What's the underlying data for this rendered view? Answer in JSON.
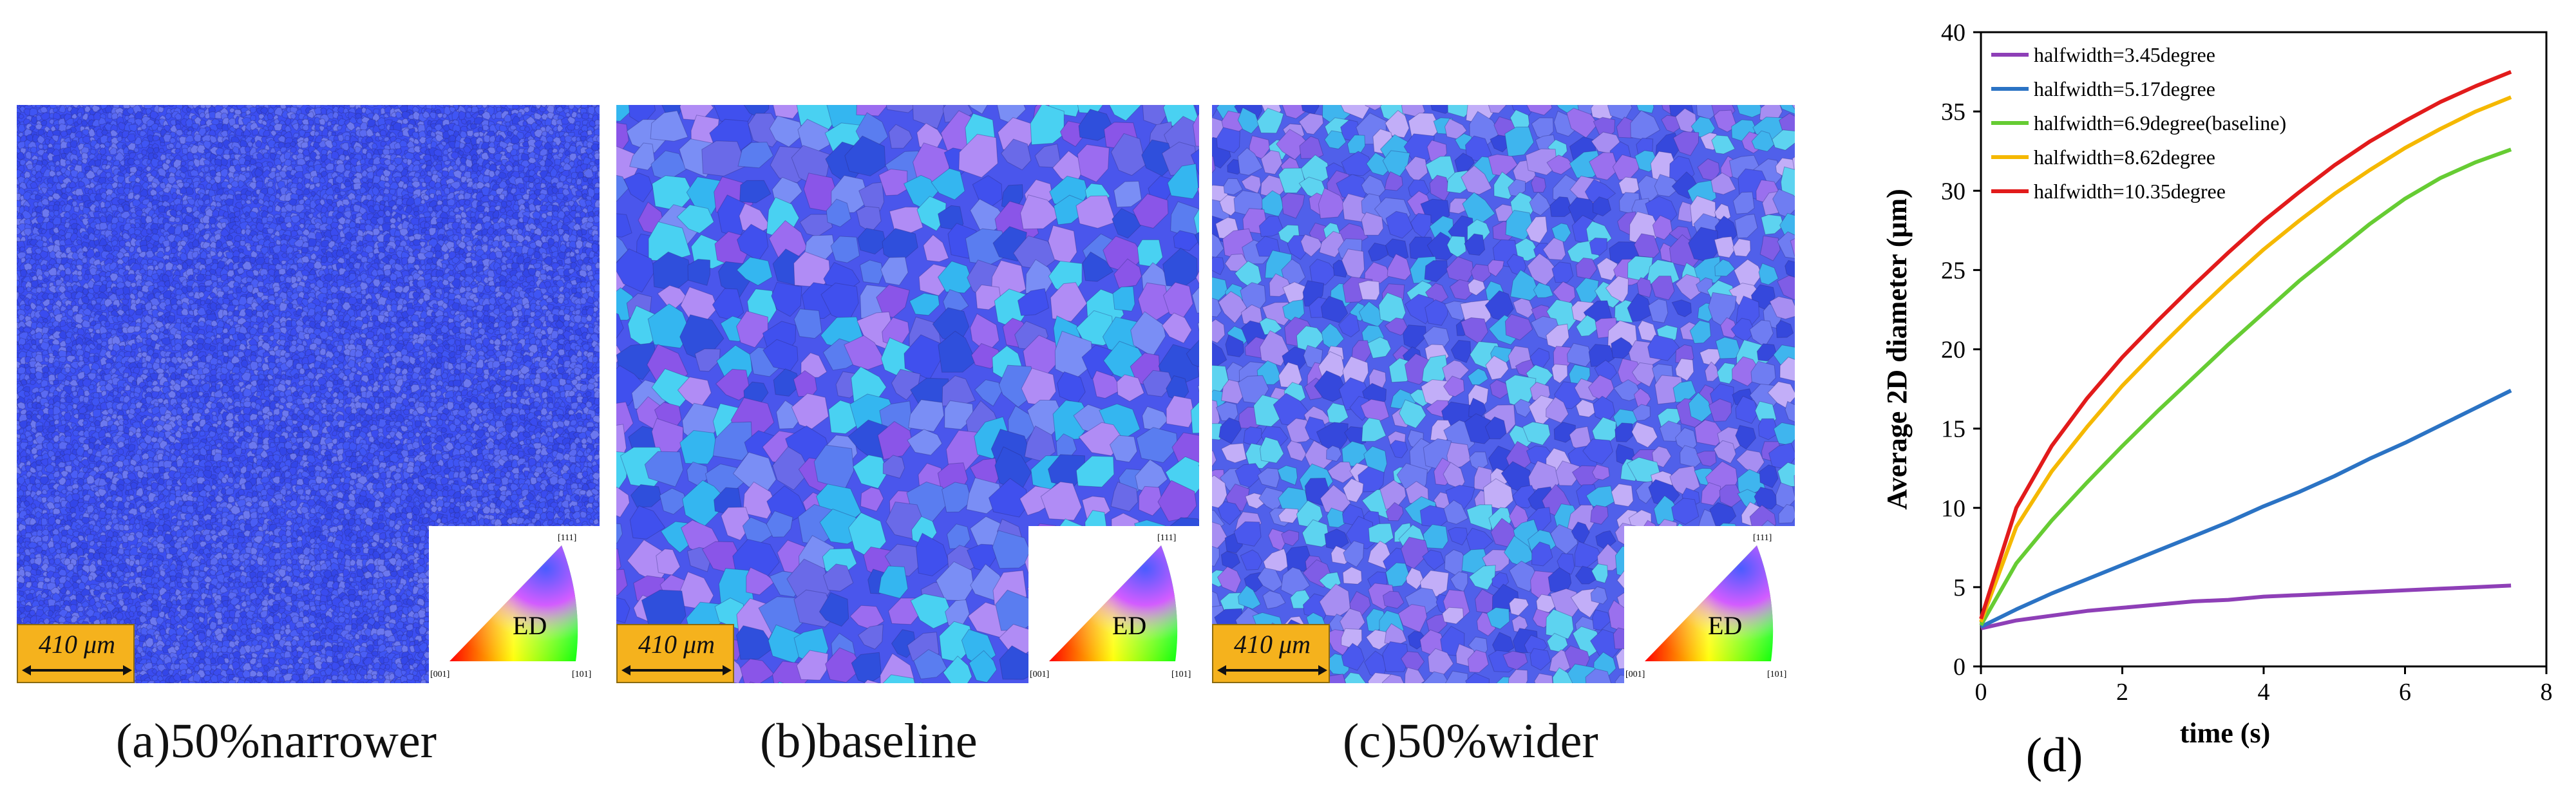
{
  "panels": [
    {
      "id": "a",
      "caption": "(a)50%narrower",
      "scale_label": "410 μm",
      "legend": {
        "top": "[111]",
        "left": "[001]",
        "right": "[101]",
        "center": "ED"
      }
    },
    {
      "id": "b",
      "caption": "(b)baseline",
      "scale_label": "410 μm",
      "legend": {
        "top": "[111]",
        "left": "[001]",
        "right": "[101]",
        "center": "ED"
      }
    },
    {
      "id": "c",
      "caption": "(c)50%wider",
      "scale_label": "410 μm",
      "legend": {
        "top": "[111]",
        "left": "[001]",
        "right": "[101]",
        "center": "ED"
      }
    }
  ],
  "chart_data": {
    "type": "line",
    "panel_label": "(d)",
    "xlabel": "time (s)",
    "ylabel": "Average 2D diameter (μm)",
    "xlim": [
      0,
      8
    ],
    "ylim": [
      0,
      40
    ],
    "xticks": [
      0,
      2,
      4,
      6,
      8
    ],
    "yticks": [
      0,
      5,
      10,
      15,
      20,
      25,
      30,
      35,
      40
    ],
    "grid": false,
    "legend_position": "top-left",
    "x": [
      0,
      0.5,
      1,
      1.5,
      2,
      2.5,
      3,
      3.5,
      4,
      4.5,
      5,
      5.5,
      6,
      6.5,
      7,
      7.5
    ],
    "series": [
      {
        "name": "halfwidth=3.45degree",
        "color": "#8e3fb7",
        "values": [
          2.4,
          2.9,
          3.2,
          3.5,
          3.7,
          3.9,
          4.1,
          4.2,
          4.4,
          4.5,
          4.6,
          4.7,
          4.8,
          4.9,
          5.0,
          5.1
        ]
      },
      {
        "name": "halfwidth=5.17degree",
        "color": "#2b73c4",
        "values": [
          2.5,
          3.6,
          4.6,
          5.5,
          6.4,
          7.3,
          8.2,
          9.1,
          10.1,
          11.0,
          12.0,
          13.1,
          14.1,
          15.2,
          16.3,
          17.4
        ]
      },
      {
        "name": "halfwidth=6.9degree(baseline)",
        "color": "#66cc33",
        "values": [
          2.6,
          6.5,
          9.2,
          11.6,
          13.9,
          16.1,
          18.2,
          20.3,
          22.3,
          24.3,
          26.1,
          27.9,
          29.5,
          30.8,
          31.8,
          32.6
        ]
      },
      {
        "name": "halfwidth=8.62degree",
        "color": "#f5b800",
        "values": [
          2.8,
          8.8,
          12.3,
          15.1,
          17.7,
          20.0,
          22.2,
          24.3,
          26.3,
          28.1,
          29.8,
          31.3,
          32.7,
          33.9,
          35.0,
          35.9
        ]
      },
      {
        "name": "halfwidth=10.35degree",
        "color": "#e21b1b",
        "values": [
          3.0,
          10.0,
          13.9,
          16.9,
          19.5,
          21.8,
          24.0,
          26.1,
          28.1,
          29.9,
          31.6,
          33.1,
          34.4,
          35.6,
          36.6,
          37.5
        ]
      }
    ]
  }
}
